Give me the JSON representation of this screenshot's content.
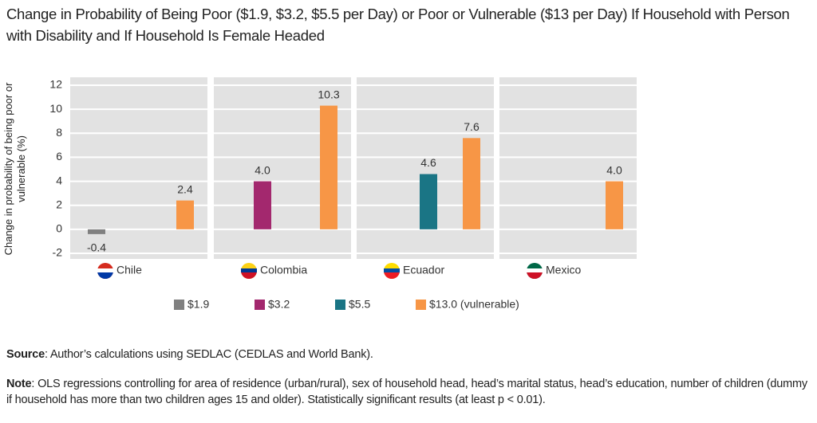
{
  "chart_data": {
    "type": "bar",
    "title": "Change in Probability of Being Poor ($1.9, $3.2, $5.5 per Day) or Poor or Vulnerable ($13 per Day) If Household with Person with Disability and If Household Is Female Headed",
    "ylabel": "Change in probability of being poor or vulnerable (%)",
    "categories": [
      "Chile",
      "Colombia",
      "Ecuador",
      "Mexico"
    ],
    "series": [
      {
        "name": "$1.9",
        "color": "#808080",
        "values": [
          -0.4,
          null,
          null,
          null
        ],
        "value_labels": [
          "-0.4",
          null,
          null,
          null
        ]
      },
      {
        "name": "$3.2",
        "color": "#a3286e",
        "values": [
          null,
          4.0,
          null,
          null
        ],
        "value_labels": [
          null,
          "4.0",
          null,
          null
        ]
      },
      {
        "name": "$5.5",
        "color": "#1a7585",
        "values": [
          null,
          null,
          4.6,
          null
        ],
        "value_labels": [
          null,
          null,
          "4.6",
          null
        ]
      },
      {
        "name": "$13.0 (vulnerable)",
        "color": "#f79646",
        "values": [
          2.4,
          10.3,
          7.6,
          4.0
        ],
        "value_labels": [
          "2.4",
          "10.3",
          "7.6",
          "4.0"
        ]
      }
    ],
    "ylim": [
      -2,
      12
    ],
    "yticks": [
      -2,
      0,
      2,
      4,
      6,
      8,
      10,
      12
    ],
    "grid": true
  },
  "source": {
    "label": "Source",
    "text": ": Author’s calculations using SEDLAC (CEDLAS and World Bank)."
  },
  "note": {
    "label": "Note",
    "text": ": OLS regressions controlling for area of residence (urban/rural), sex of household head, head’s marital status, head’s education, number of children (dummy if household has more than two children ages 15 and older). Statistically significant results (at least p < 0.01)."
  }
}
